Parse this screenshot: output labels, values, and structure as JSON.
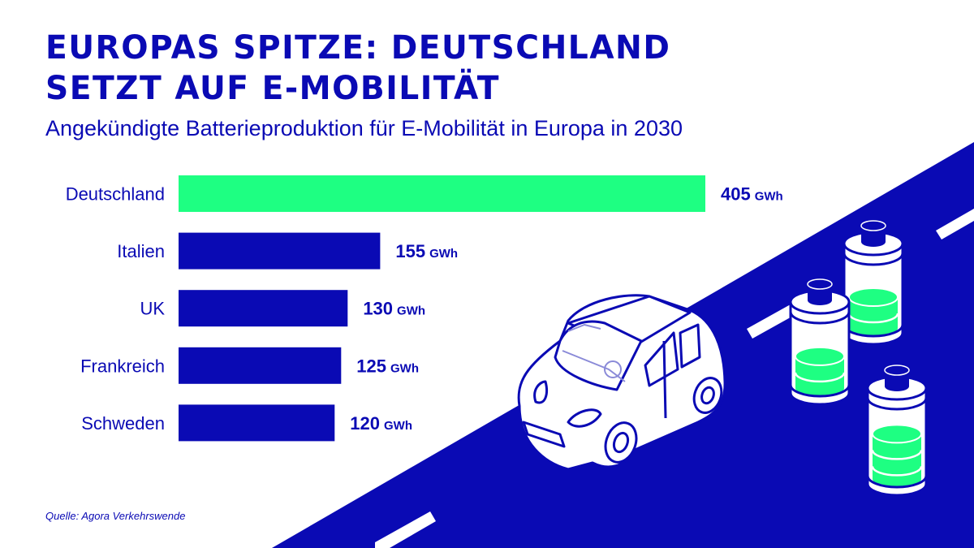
{
  "title_line1": "EUROPAS SPITZE: DEUTSCHLAND",
  "title_line2": "SETZT AUF E-MOBILITÄT",
  "source": "Quelle: Agora Verkehrswende",
  "colors": {
    "primary": "#0a0ab4",
    "highlight": "#1eff82",
    "background": "#ffffff"
  },
  "illustration": {
    "icons": [
      "car-icon",
      "battery-icon",
      "road"
    ]
  },
  "chart_data": {
    "type": "bar",
    "orientation": "horizontal",
    "title": "Angekündigte Batterieproduktion für E-Mobilität in Europa in 2030",
    "unit": "GWh",
    "categories": [
      "Deutschland",
      "Italien",
      "UK",
      "Frankreich",
      "Schweden"
    ],
    "values": [
      405,
      155,
      130,
      125,
      120
    ],
    "value_labels": [
      "405",
      "155",
      "130",
      "125",
      "120"
    ],
    "highlight": "Deutschland",
    "xlim": [
      0,
      405
    ],
    "grid": false,
    "axes_visible": false
  }
}
